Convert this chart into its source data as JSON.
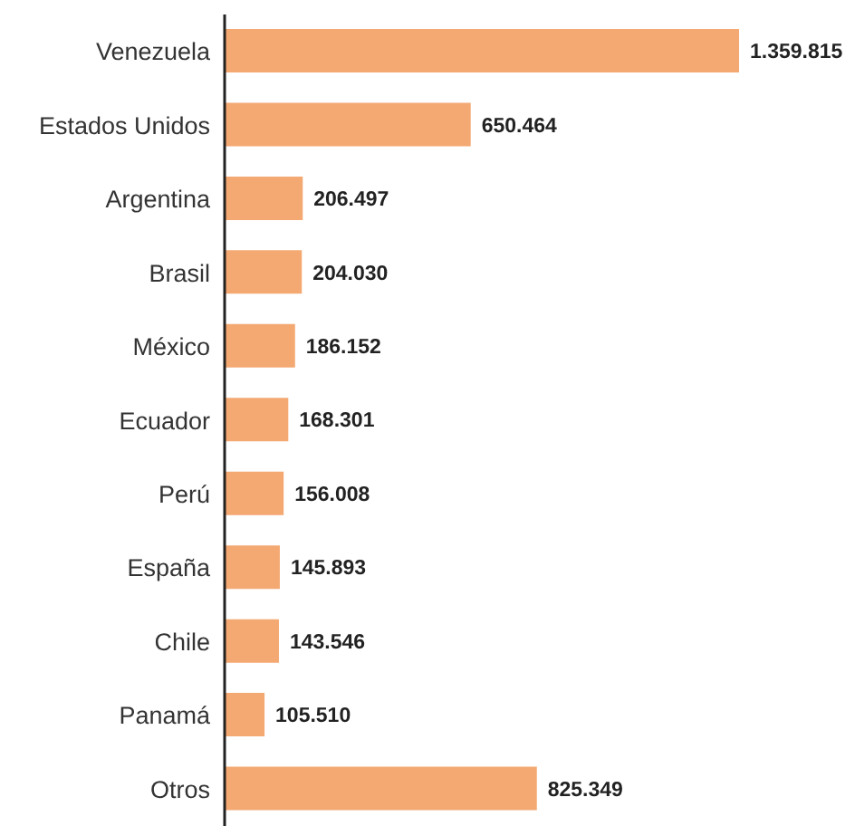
{
  "chart_data": {
    "type": "bar",
    "orientation": "horizontal",
    "categories": [
      "Venezuela",
      "Estados Unidos",
      "Argentina",
      "Brasil",
      "México",
      "Ecuador",
      "Perú",
      "España",
      "Chile",
      "Panamá",
      "Otros"
    ],
    "values": [
      1359815,
      650464,
      206497,
      204030,
      186152,
      168301,
      156008,
      145893,
      143546,
      105510,
      825349
    ],
    "value_labels": [
      "1.359.815",
      "650.464",
      "206.497",
      "204.030",
      "186.152",
      "168.301",
      "156.008",
      "145.893",
      "143.546",
      "105.510",
      "825.349"
    ],
    "color": "#f4a872",
    "grid": false,
    "legend": false,
    "tick_labels": "y"
  }
}
